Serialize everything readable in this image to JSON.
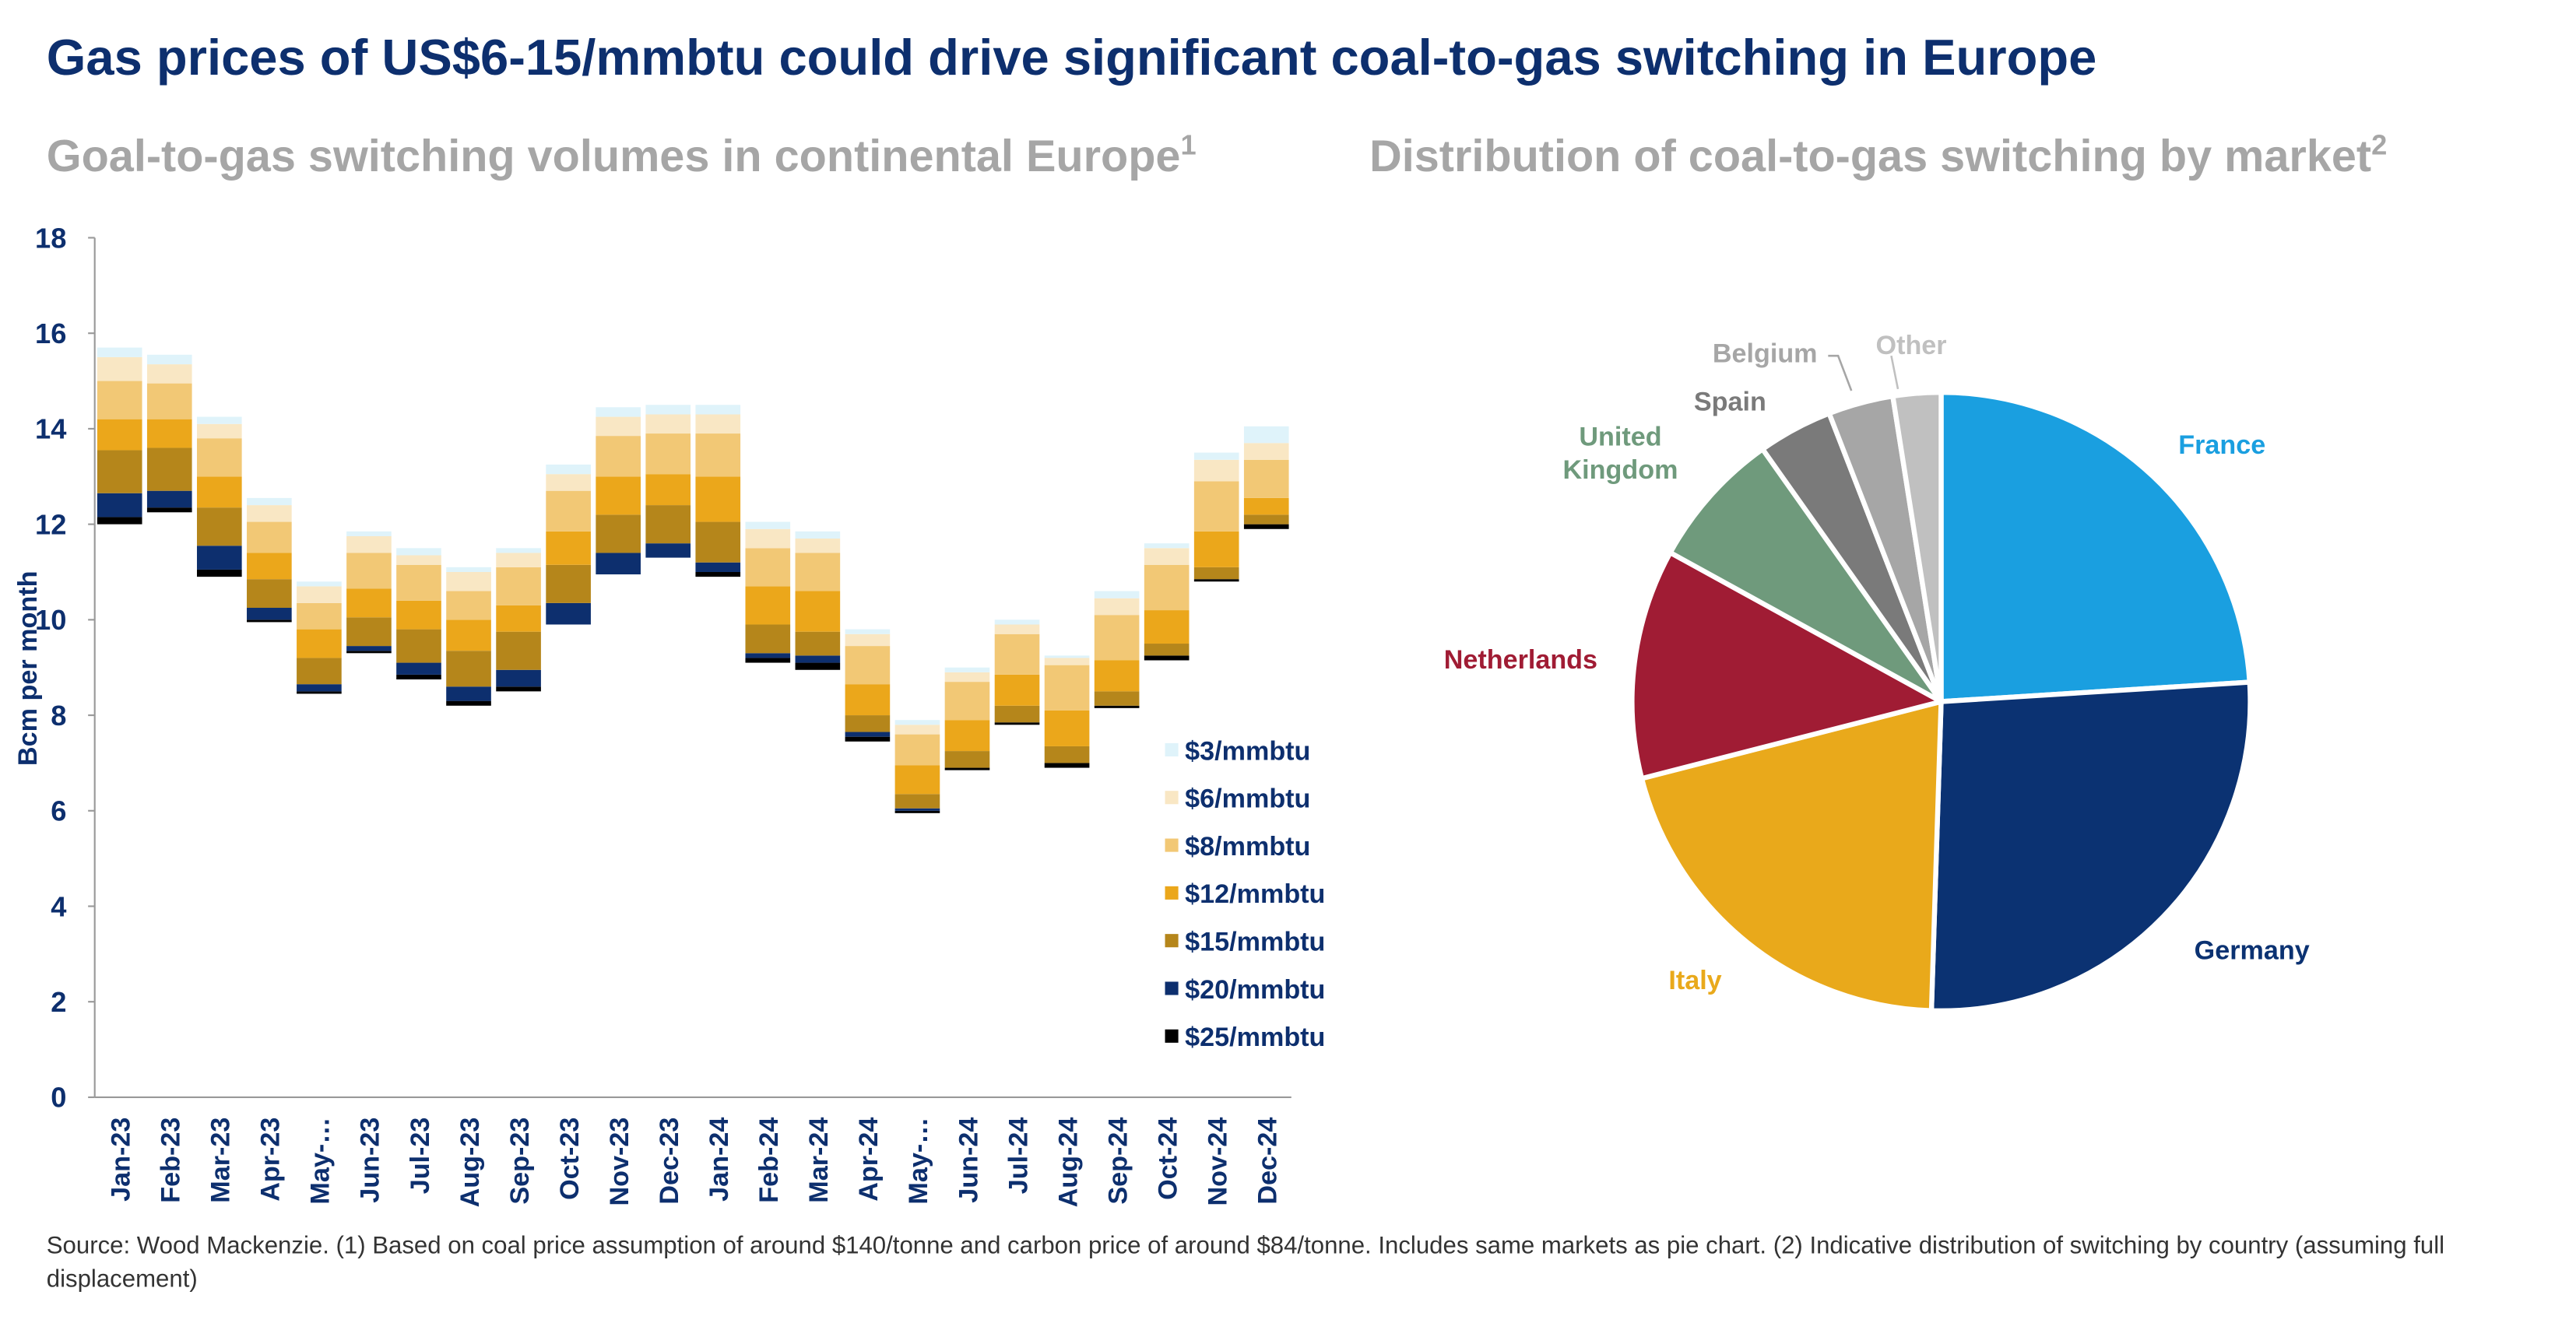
{
  "title": "Gas prices of US$6-15/mmbtu could drive significant coal-to-gas switching in Europe",
  "source": "Source: Wood Mackenzie. (1) Based on coal price assumption of around $140/tonne and carbon price of around $84/tonne. Includes same markets as pie chart. (2) Indicative distribution of switching by country (assuming full displacement)",
  "chart_data": [
    {
      "type": "floating_stacked_bar",
      "title": "Goal-to-gas switching volumes in continental Europe",
      "title_note": "1",
      "ylabel": "Bcm per month",
      "categories": [
        "Jan-23",
        "Feb-23",
        "Mar-23",
        "Apr-23",
        "May-…",
        "Jun-23",
        "Jul-23",
        "Aug-23",
        "Sep-23",
        "Oct-23",
        "Nov-23",
        "Dec-23",
        "Jan-24",
        "Feb-24",
        "Mar-24",
        "Apr-24",
        "May-…",
        "Jun-24",
        "Jul-24",
        "Aug-24",
        "Sep-24",
        "Oct-24",
        "Nov-24",
        "Dec-24"
      ],
      "base": [
        12.0,
        12.25,
        10.9,
        9.95,
        8.45,
        9.3,
        8.75,
        8.2,
        8.5,
        9.9,
        10.95,
        11.3,
        10.9,
        9.1,
        8.95,
        7.45,
        5.95,
        6.85,
        7.8,
        6.9,
        8.15,
        9.15,
        10.8,
        11.9
      ],
      "series": [
        {
          "name": "$25/mmbtu",
          "color": "#000000",
          "values": [
            0.15,
            0.1,
            0.15,
            0.05,
            0.05,
            0.05,
            0.1,
            0.1,
            0.1,
            0,
            0,
            0,
            0.1,
            0.1,
            0.15,
            0.1,
            0.05,
            0.05,
            0.05,
            0.1,
            0.05,
            0.1,
            0.05,
            0.1
          ]
        },
        {
          "name": "$20/mmbtu",
          "color": "#0d2f6e",
          "values": [
            0.5,
            0.35,
            0.5,
            0.25,
            0.15,
            0.1,
            0.25,
            0.3,
            0.35,
            0.45,
            0.45,
            0.3,
            0.2,
            0.1,
            0.15,
            0.1,
            0.05,
            0,
            0,
            0,
            0,
            0,
            0,
            0
          ]
        },
        {
          "name": "$15/mmbtu",
          "color": "#b5861b",
          "values": [
            0.9,
            0.9,
            0.8,
            0.6,
            0.55,
            0.6,
            0.7,
            0.75,
            0.8,
            0.8,
            0.8,
            0.8,
            0.85,
            0.6,
            0.5,
            0.35,
            0.3,
            0.35,
            0.35,
            0.35,
            0.3,
            0.25,
            0.25,
            0.2
          ]
        },
        {
          "name": "$12/mmbtu",
          "color": "#eba71b",
          "values": [
            0.65,
            0.6,
            0.65,
            0.55,
            0.6,
            0.6,
            0.6,
            0.65,
            0.55,
            0.7,
            0.8,
            0.65,
            0.95,
            0.8,
            0.85,
            0.65,
            0.6,
            0.65,
            0.65,
            0.75,
            0.65,
            0.7,
            0.75,
            0.35
          ]
        },
        {
          "name": "$8/mmbtu",
          "color": "#f2c875",
          "values": [
            0.8,
            0.75,
            0.8,
            0.65,
            0.55,
            0.75,
            0.75,
            0.6,
            0.8,
            0.85,
            0.85,
            0.85,
            0.9,
            0.8,
            0.8,
            0.8,
            0.65,
            0.8,
            0.85,
            0.95,
            0.95,
            0.95,
            1.05,
            0.8
          ]
        },
        {
          "name": "$6/mmbtu",
          "color": "#f9e7c4",
          "values": [
            0.5,
            0.4,
            0.3,
            0.35,
            0.35,
            0.35,
            0.2,
            0.4,
            0.3,
            0.35,
            0.4,
            0.4,
            0.4,
            0.4,
            0.3,
            0.25,
            0.2,
            0.2,
            0.2,
            0.15,
            0.35,
            0.35,
            0.45,
            0.35
          ]
        },
        {
          "name": "$3/mmbtu",
          "color": "#dff3fa",
          "values": [
            0.2,
            0.2,
            0.15,
            0.15,
            0.1,
            0.1,
            0.15,
            0.1,
            0.1,
            0.2,
            0.2,
            0.2,
            0.2,
            0.15,
            0.15,
            0.1,
            0.1,
            0.1,
            0.1,
            0.05,
            0.15,
            0.1,
            0.15,
            0.35
          ]
        }
      ],
      "ylim": [
        0,
        18
      ],
      "yticks": [
        0,
        2,
        4,
        6,
        8,
        10,
        12,
        14,
        16,
        18
      ]
    },
    {
      "type": "pie",
      "title": "Distribution of coal-to-gas switching by market",
      "title_note": "2",
      "categories": [
        "France",
        "Germany",
        "Italy",
        "Netherlands",
        "United Kingdom",
        "Spain",
        "Belgium",
        "Other"
      ],
      "values": [
        24,
        26.5,
        20.5,
        12,
        7.2,
        3.9,
        3.4,
        2.5
      ],
      "colors": [
        "#1a9fe0",
        "#0b3272",
        "#e9a91b",
        "#a01c34",
        "#6f9a7c",
        "#7a7a7a",
        "#a6a6a6",
        "#c0c0c0"
      ],
      "label_colors": [
        "#1a9fe0",
        "#0b3272",
        "#e9a91b",
        "#a01c34",
        "#6f9a7c",
        "#7a7a7a",
        "#a6a6a6",
        "#c0c0c0"
      ]
    }
  ]
}
